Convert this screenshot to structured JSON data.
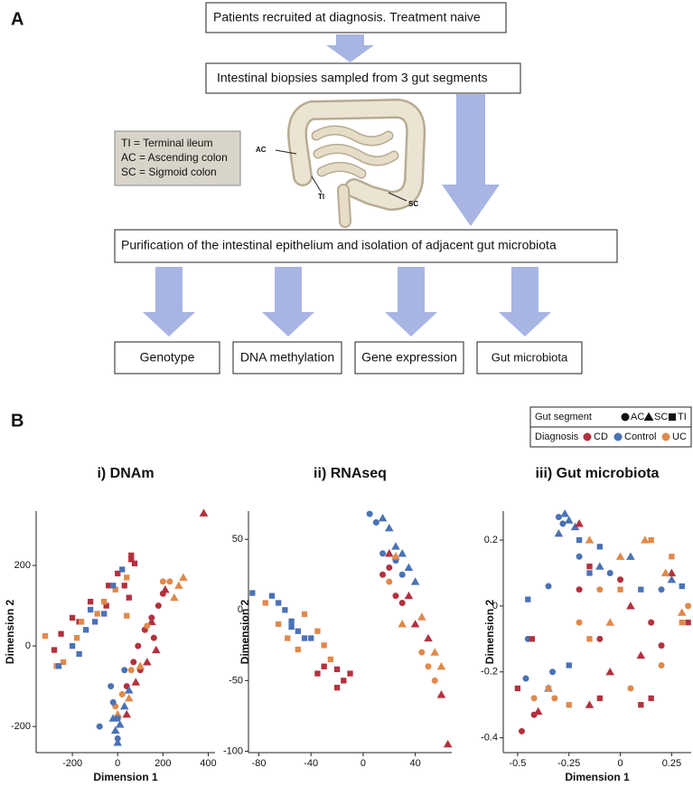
{
  "labels": {
    "a": "A",
    "b": "B"
  },
  "diagram": {
    "step1": "Patients recruited at diagnosis. Treatment naive",
    "step2": "Intestinal biopsies sampled from 3 gut segments",
    "key": [
      "TI = Terminal ileum",
      "AC = Ascending colon",
      "SC = Sigmoid colon"
    ],
    "segment_labels": {
      "ac": "AC",
      "ti": "TI",
      "sc": "SC"
    },
    "step3": "Purification of the intestinal epithelium and isolation of adjacent gut microbiota",
    "outputs": [
      "Genotype",
      "DNA methylation",
      "Gene expression",
      "Gut microbiota"
    ]
  },
  "legend": {
    "segment_title": "Gut segment",
    "segments": [
      {
        "name": "AC",
        "shape": "circle"
      },
      {
        "name": "SC",
        "shape": "triangle"
      },
      {
        "name": "TI",
        "shape": "square"
      }
    ],
    "diagnosis_title": "Diagnosis",
    "diagnoses": [
      {
        "name": "CD",
        "color": "#b3313e"
      },
      {
        "name": "Control",
        "color": "#4a72b5"
      },
      {
        "name": "UC",
        "color": "#e0894b"
      }
    ]
  },
  "chart_data": [
    {
      "type": "scatter",
      "title": "i) DNAm",
      "xlabel": "Dimension 1",
      "ylabel": "Dimension 2",
      "xlim": [
        -360,
        430
      ],
      "ylim": [
        -265,
        335
      ],
      "xticks": [
        -200,
        0,
        200,
        400
      ],
      "yticks": [
        -200,
        0,
        200
      ],
      "series": [
        {
          "diagnosis": "CD",
          "segment": "TI",
          "x": [
            60,
            60,
            75,
            0,
            -40,
            30,
            -120,
            -200,
            -250,
            -280,
            -50,
            -170,
            50
          ],
          "values": [
            225,
            215,
            205,
            180,
            150,
            150,
            110,
            70,
            30,
            -10,
            100,
            60,
            120
          ]
        },
        {
          "diagnosis": "UC",
          "segment": "TI",
          "x": [
            40,
            -10,
            -90,
            -160,
            -240,
            -320,
            -180,
            -270,
            -60,
            40
          ],
          "values": [
            170,
            140,
            80,
            60,
            -40,
            25,
            20,
            -50,
            110,
            75
          ]
        },
        {
          "diagnosis": "Control",
          "segment": "TI",
          "x": [
            20,
            -20,
            -100,
            -140,
            -200,
            -260,
            -170,
            -60,
            -120
          ],
          "values": [
            190,
            150,
            60,
            40,
            0,
            -50,
            -20,
            80,
            90
          ]
        },
        {
          "diagnosis": "CD",
          "segment": "AC",
          "x": [
            180,
            150,
            120,
            90,
            70,
            40,
            100,
            200,
            160
          ],
          "values": [
            100,
            70,
            40,
            0,
            -40,
            -100,
            -60,
            130,
            20
          ]
        },
        {
          "diagnosis": "CD",
          "segment": "SC",
          "x": [
            380,
            170,
            130,
            80,
            210,
            40,
            150
          ],
          "values": [
            330,
            -10,
            -40,
            -90,
            140,
            -170,
            60
          ]
        },
        {
          "diagnosis": "UC",
          "segment": "AC",
          "x": [
            200,
            130,
            60,
            20,
            -10,
            230
          ],
          "values": [
            160,
            50,
            -60,
            -120,
            -150,
            160
          ]
        },
        {
          "diagnosis": "UC",
          "segment": "SC",
          "x": [
            290,
            270,
            250,
            100,
            50,
            0
          ],
          "values": [
            170,
            150,
            120,
            -50,
            -130,
            -170
          ]
        },
        {
          "diagnosis": "Control",
          "segment": "AC",
          "x": [
            -80,
            -20,
            0,
            30,
            -30,
            0
          ],
          "values": [
            -200,
            -140,
            -180,
            -60,
            -100,
            -230
          ]
        },
        {
          "diagnosis": "Control",
          "segment": "SC",
          "x": [
            -10,
            0,
            30,
            50,
            -20,
            10
          ],
          "values": [
            -210,
            -240,
            -150,
            -110,
            -180,
            -195
          ]
        }
      ]
    },
    {
      "type": "scatter",
      "title": "ii) RNAseq",
      "ylabel": "Dimension 2",
      "xlim": [
        -88,
        68
      ],
      "ylim": [
        -101,
        70
      ],
      "xticks": [
        -80,
        -40,
        0,
        40
      ],
      "yticks": [
        -100,
        -50,
        0,
        50
      ],
      "series": [
        {
          "diagnosis": "Control",
          "segment": "TI",
          "x": [
            -85,
            -70,
            -65,
            -60,
            -55,
            -50,
            -45,
            -40,
            -55
          ],
          "values": [
            12,
            10,
            5,
            0,
            -8,
            -15,
            -20,
            -20,
            -12
          ]
        },
        {
          "diagnosis": "UC",
          "segment": "TI",
          "x": [
            -75,
            -65,
            -58,
            -50,
            -45,
            -35,
            -30,
            -25
          ],
          "values": [
            5,
            -10,
            -20,
            -28,
            -3,
            -15,
            -25,
            -35
          ]
        },
        {
          "diagnosis": "CD",
          "segment": "TI",
          "x": [
            -30,
            -20,
            -15,
            -20,
            -10,
            -35
          ],
          "values": [
            -40,
            -42,
            -50,
            -55,
            -45,
            -45
          ]
        },
        {
          "diagnosis": "Control",
          "segment": "AC",
          "x": [
            5,
            10,
            15,
            25,
            30
          ],
          "values": [
            68,
            62,
            40,
            35,
            25
          ]
        },
        {
          "diagnosis": "Control",
          "segment": "SC",
          "x": [
            15,
            20,
            25,
            30,
            35,
            40
          ],
          "values": [
            65,
            58,
            45,
            40,
            30,
            20
          ]
        },
        {
          "diagnosis": "CD",
          "segment": "AC",
          "x": [
            20,
            25,
            30,
            15
          ],
          "values": [
            30,
            10,
            5,
            25
          ]
        },
        {
          "diagnosis": "CD",
          "segment": "SC",
          "x": [
            20,
            35,
            40,
            50,
            60,
            65
          ],
          "values": [
            40,
            10,
            -10,
            -20,
            -60,
            -95
          ]
        },
        {
          "diagnosis": "UC",
          "segment": "AC",
          "x": [
            20,
            45,
            50,
            55
          ],
          "values": [
            20,
            -30,
            -40,
            -50
          ]
        },
        {
          "diagnosis": "UC",
          "segment": "SC",
          "x": [
            25,
            30,
            45,
            55,
            60
          ],
          "values": [
            38,
            -10,
            -5,
            -30,
            -40
          ]
        }
      ]
    },
    {
      "type": "scatter",
      "title": "iii) Gut microbiota",
      "xlabel": "Dimension 1",
      "ylabel": "Dimension 2",
      "xlim": [
        -0.57,
        0.345
      ],
      "ylim": [
        -0.445,
        0.288
      ],
      "xticks": [
        -0.5,
        -0.25,
        0,
        0.25
      ],
      "yticks": [
        -0.4,
        -0.2,
        0,
        0.2
      ],
      "series": [
        {
          "diagnosis": "Control",
          "segment": "AC",
          "x": [
            -0.3,
            -0.28,
            -0.35,
            -0.45,
            -0.2,
            -0.05,
            0.2,
            -0.46,
            -0.33
          ],
          "values": [
            0.27,
            0.25,
            0.06,
            -0.1,
            0.15,
            0.1,
            0.05,
            -0.22,
            -0.2
          ]
        },
        {
          "diagnosis": "Control",
          "segment": "SC",
          "x": [
            -0.27,
            -0.25,
            -0.22,
            -0.3,
            -0.1,
            0.05,
            -0.35,
            0.25
          ],
          "values": [
            0.28,
            0.26,
            0.24,
            0.22,
            0.12,
            0.15,
            -0.25,
            0.08
          ]
        },
        {
          "diagnosis": "Control",
          "segment": "TI",
          "x": [
            -0.2,
            -0.1,
            -0.15,
            0.1,
            -0.45,
            -0.25,
            0.3
          ],
          "values": [
            0.2,
            0.18,
            0.1,
            0.05,
            0.02,
            -0.18,
            0.06
          ]
        },
        {
          "diagnosis": "CD",
          "segment": "AC",
          "x": [
            -0.48,
            -0.42,
            -0.2,
            0.15,
            -0.1,
            0.2,
            0.0
          ],
          "values": [
            -0.38,
            -0.33,
            0.05,
            -0.05,
            -0.1,
            -0.12,
            0.08
          ]
        },
        {
          "diagnosis": "CD",
          "segment": "SC",
          "x": [
            -0.4,
            -0.15,
            -0.05,
            0.1,
            -0.2,
            0.05,
            0.25
          ],
          "values": [
            -0.32,
            -0.3,
            -0.2,
            -0.15,
            0.25,
            0.0,
            0.1
          ]
        },
        {
          "diagnosis": "CD",
          "segment": "TI",
          "x": [
            -0.43,
            -0.5,
            -0.1,
            0.15,
            0.33,
            -0.15,
            0.1
          ],
          "values": [
            -0.1,
            -0.25,
            -0.28,
            -0.28,
            -0.05,
            0.12,
            -0.3
          ]
        },
        {
          "diagnosis": "UC",
          "segment": "AC",
          "x": [
            -0.32,
            -0.2,
            0.05,
            0.2,
            0.33,
            -0.1,
            -0.42
          ],
          "values": [
            -0.28,
            -0.05,
            -0.25,
            -0.18,
            0.0,
            0.05,
            -0.28
          ]
        },
        {
          "diagnosis": "UC",
          "segment": "SC",
          "x": [
            -0.15,
            0.0,
            0.12,
            0.22,
            0.3,
            -0.05
          ],
          "values": [
            0.2,
            0.15,
            0.2,
            0.1,
            -0.02,
            -0.05
          ]
        },
        {
          "diagnosis": "UC",
          "segment": "TI",
          "x": [
            -0.35,
            -0.25,
            0.0,
            0.15,
            0.25,
            0.3,
            -0.15
          ],
          "values": [
            -0.25,
            -0.3,
            0.05,
            0.2,
            0.15,
            -0.05,
            -0.1
          ]
        }
      ]
    }
  ]
}
